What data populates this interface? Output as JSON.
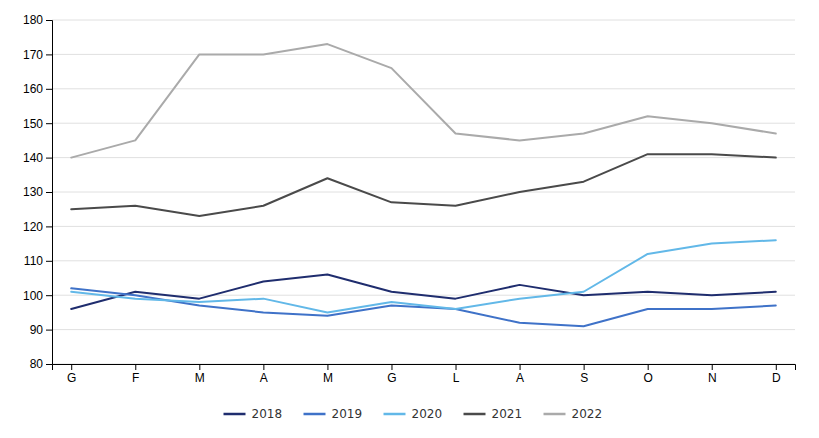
{
  "chart_data": {
    "type": "line",
    "categories": [
      "G",
      "F",
      "M",
      "A",
      "M",
      "G",
      "L",
      "A",
      "S",
      "O",
      "N",
      "D"
    ],
    "series": [
      {
        "name": "2018",
        "color": "#1f2d6e",
        "values": [
          96,
          101,
          99,
          104,
          106,
          101,
          99,
          103,
          100,
          101,
          100,
          101
        ]
      },
      {
        "name": "2019",
        "color": "#3f72c8",
        "values": [
          102,
          100,
          97,
          95,
          94,
          97,
          96,
          92,
          91,
          96,
          96,
          97
        ]
      },
      {
        "name": "2020",
        "color": "#62b8e8",
        "values": [
          101,
          99,
          98,
          99,
          95,
          98,
          96,
          99,
          101,
          112,
          115,
          116
        ]
      },
      {
        "name": "2021",
        "color": "#4a4a4a",
        "values": [
          125,
          126,
          123,
          126,
          134,
          127,
          126,
          130,
          133,
          141,
          141,
          140
        ]
      },
      {
        "name": "2022",
        "color": "#aaaaaa",
        "values": [
          140,
          145,
          170,
          170,
          173,
          166,
          147,
          145,
          147,
          152,
          150,
          147
        ]
      }
    ],
    "ylim": [
      80,
      180
    ],
    "yticks": [
      80,
      90,
      100,
      110,
      120,
      130,
      140,
      150,
      160,
      170,
      180
    ],
    "grid": true,
    "legend": "bottom"
  }
}
